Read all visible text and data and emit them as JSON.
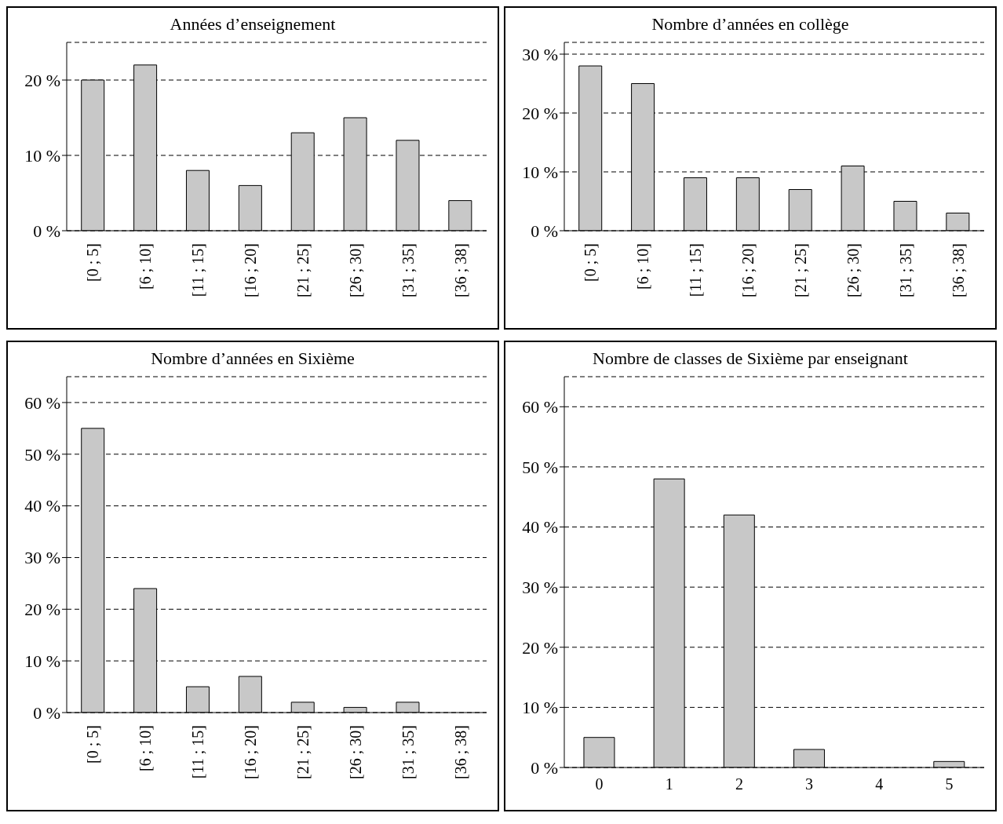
{
  "chart_data": [
    {
      "type": "bar",
      "title": "Années d’enseignement",
      "categories": [
        "[0 ; 5]",
        "[6 ; 10]",
        "[11 ; 15]",
        "[16 ; 20]",
        "[21 ; 25]",
        "[26 ; 30]",
        "[31 ; 35]",
        "[36 ; 38]"
      ],
      "values": [
        20,
        22,
        8,
        6,
        13,
        15,
        12,
        4
      ],
      "color": "#c8c8c8",
      "ylim": [
        0,
        25
      ],
      "yticks": [
        {
          "value": 0,
          "label": "0 %"
        },
        {
          "value": 10,
          "label": "10 %"
        },
        {
          "value": 20,
          "label": "20 %"
        }
      ],
      "grid": "y"
    },
    {
      "type": "bar",
      "title": "Nombre d’années en collège",
      "categories": [
        "[0 ; 5]",
        "[6 ; 10]",
        "[11 ; 15]",
        "[16 ; 20]",
        "[21 ; 25]",
        "[26 ; 30]",
        "[31 ; 35]",
        "[36 ; 38]"
      ],
      "values": [
        28,
        25,
        9,
        9,
        7,
        11,
        5,
        3
      ],
      "color": "#c8c8c8",
      "ylim": [
        0,
        32
      ],
      "yticks": [
        {
          "value": 0,
          "label": "0 %"
        },
        {
          "value": 10,
          "label": "10 %"
        },
        {
          "value": 20,
          "label": "20 %"
        },
        {
          "value": 30,
          "label": "30 %"
        }
      ],
      "grid": "y"
    },
    {
      "type": "bar",
      "title": "Nombre d’années en Sixième",
      "categories": [
        "[0 ; 5]",
        "[6 ; 10]",
        "[11 ; 15]",
        "[16 ; 20]",
        "[21 ; 25]",
        "[26 ; 30]",
        "[31 ; 35]",
        "[36 ; 38]"
      ],
      "values": [
        55,
        24,
        5,
        7,
        2,
        1,
        2,
        0
      ],
      "color": "#c8c8c8",
      "ylim": [
        0,
        65
      ],
      "yticks": [
        {
          "value": 0,
          "label": "0 %"
        },
        {
          "value": 10,
          "label": "10 %"
        },
        {
          "value": 20,
          "label": "20 %"
        },
        {
          "value": 30,
          "label": "30 %"
        },
        {
          "value": 40,
          "label": "40 %"
        },
        {
          "value": 50,
          "label": "50 %"
        },
        {
          "value": 60,
          "label": "60 %"
        }
      ],
      "grid": "y"
    },
    {
      "type": "bar",
      "title": "Nombre de classes de Sixième par enseignant",
      "categories": [
        "0",
        "1",
        "2",
        "3",
        "4",
        "5"
      ],
      "values": [
        5,
        48,
        42,
        3,
        0,
        1
      ],
      "color": "#c8c8c8",
      "ylim": [
        0,
        65
      ],
      "yticks": [
        {
          "value": 0,
          "label": "0 %"
        },
        {
          "value": 10,
          "label": "10 %"
        },
        {
          "value": 20,
          "label": "20 %"
        },
        {
          "value": 30,
          "label": "30 %"
        },
        {
          "value": 40,
          "label": "40 %"
        },
        {
          "value": 50,
          "label": "50 %"
        },
        {
          "value": 60,
          "label": "60 %"
        }
      ],
      "grid": "y"
    }
  ]
}
